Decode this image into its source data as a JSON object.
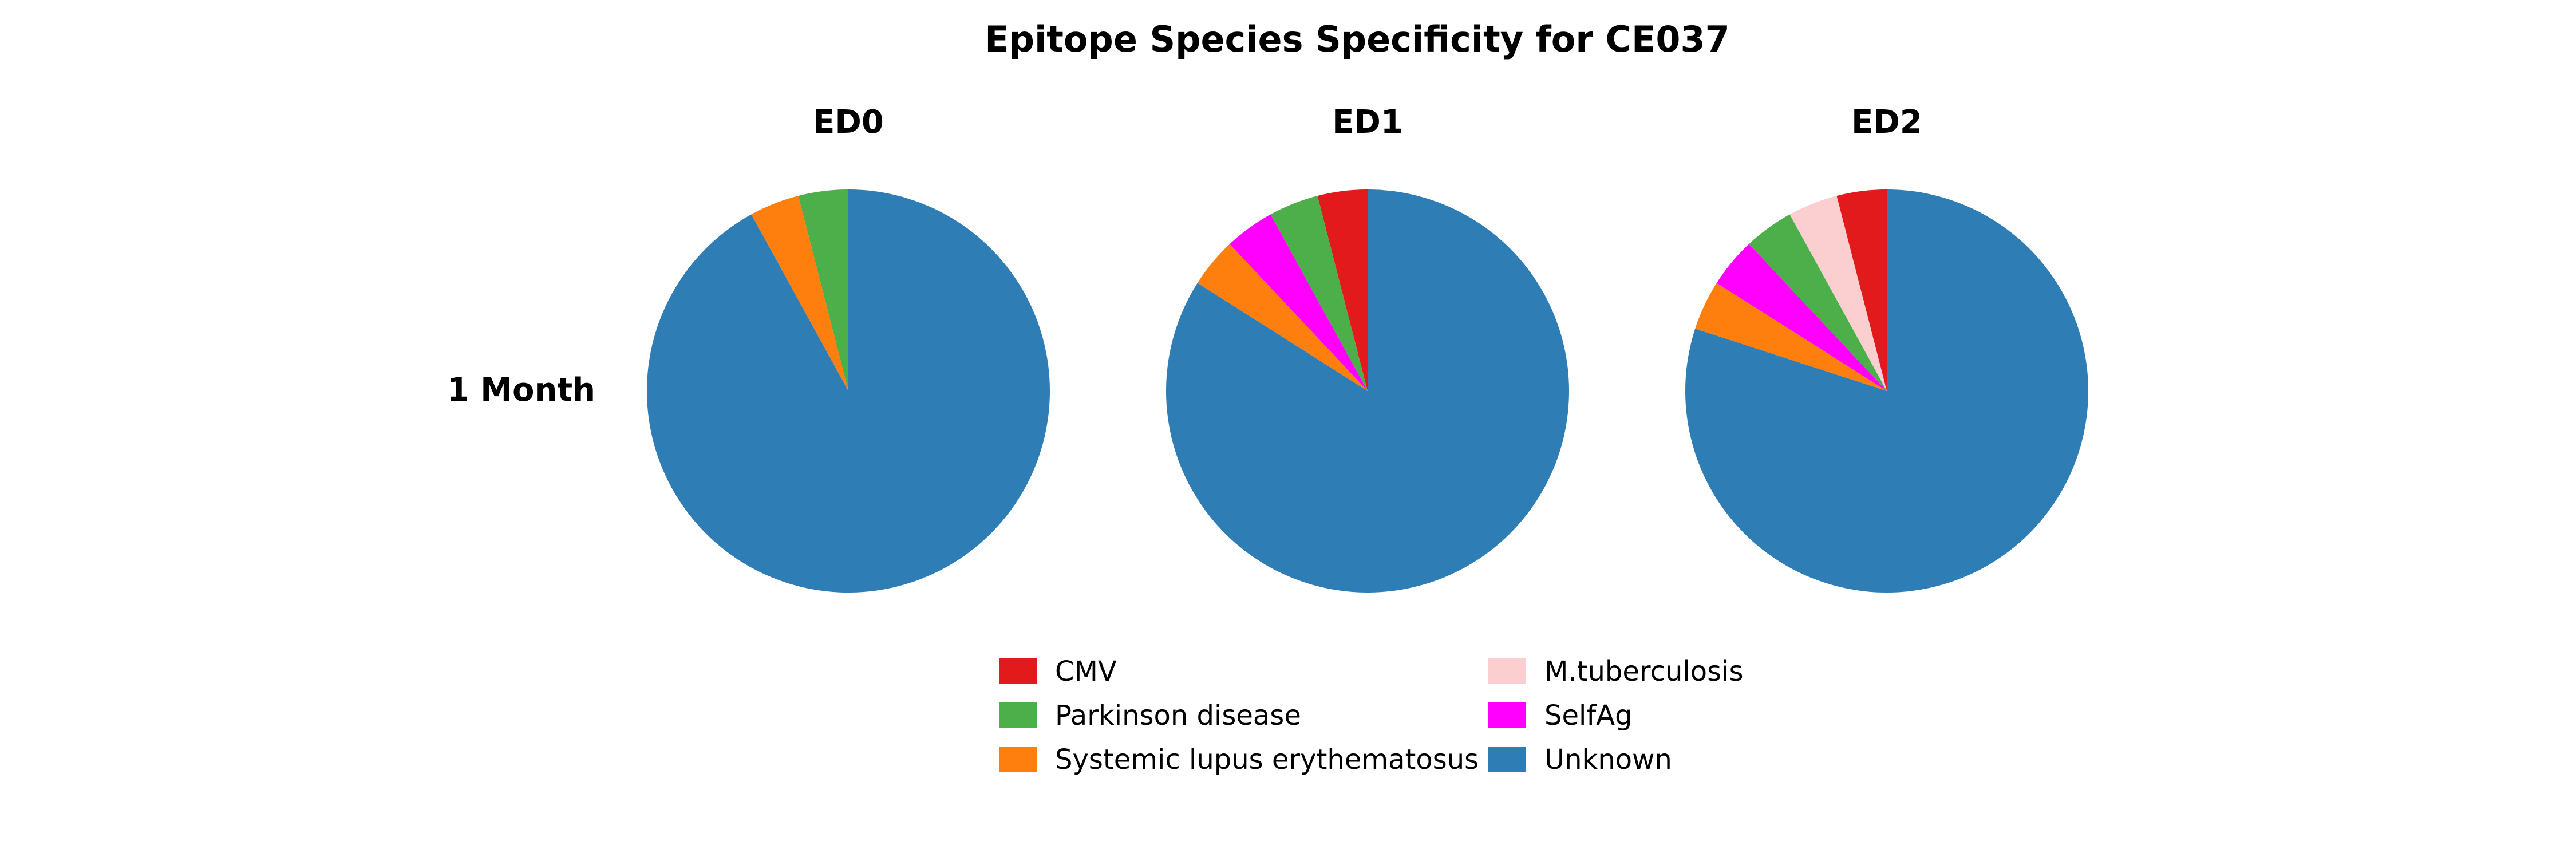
{
  "chart_data": {
    "type": "pie",
    "title": "Epitope Species Specificity for CE037",
    "row_label": "1 Month",
    "colors": {
      "CMV": "#e31a1c",
      "Parkinson disease": "#4daf4a",
      "Systemic lupus erythematosus": "#ff7f0e",
      "M.tuberculosis": "#fbcfcf",
      "SelfAg": "#ff00ff",
      "Unknown": "#2e7db5"
    },
    "panels": [
      {
        "title": "ED0",
        "slices": [
          {
            "label": "Parkinson disease",
            "value": 4
          },
          {
            "label": "Systemic lupus erythematosus",
            "value": 4
          },
          {
            "label": "Unknown",
            "value": 92
          }
        ]
      },
      {
        "title": "ED1",
        "slices": [
          {
            "label": "CMV",
            "value": 4
          },
          {
            "label": "Parkinson disease",
            "value": 4
          },
          {
            "label": "SelfAg",
            "value": 4
          },
          {
            "label": "Systemic lupus erythematosus",
            "value": 4
          },
          {
            "label": "Unknown",
            "value": 84
          }
        ]
      },
      {
        "title": "ED2",
        "slices": [
          {
            "label": "CMV",
            "value": 4
          },
          {
            "label": "M.tuberculosis",
            "value": 4
          },
          {
            "label": "Parkinson disease",
            "value": 4
          },
          {
            "label": "SelfAg",
            "value": 4
          },
          {
            "label": "Systemic lupus erythematosus",
            "value": 4
          },
          {
            "label": "Unknown",
            "value": 80
          }
        ]
      }
    ],
    "legend": {
      "position": "bottom-center",
      "columns": [
        [
          "CMV",
          "Parkinson disease",
          "Systemic lupus erythematosus"
        ],
        [
          "M.tuberculosis",
          "SelfAg",
          "Unknown"
        ]
      ]
    }
  }
}
